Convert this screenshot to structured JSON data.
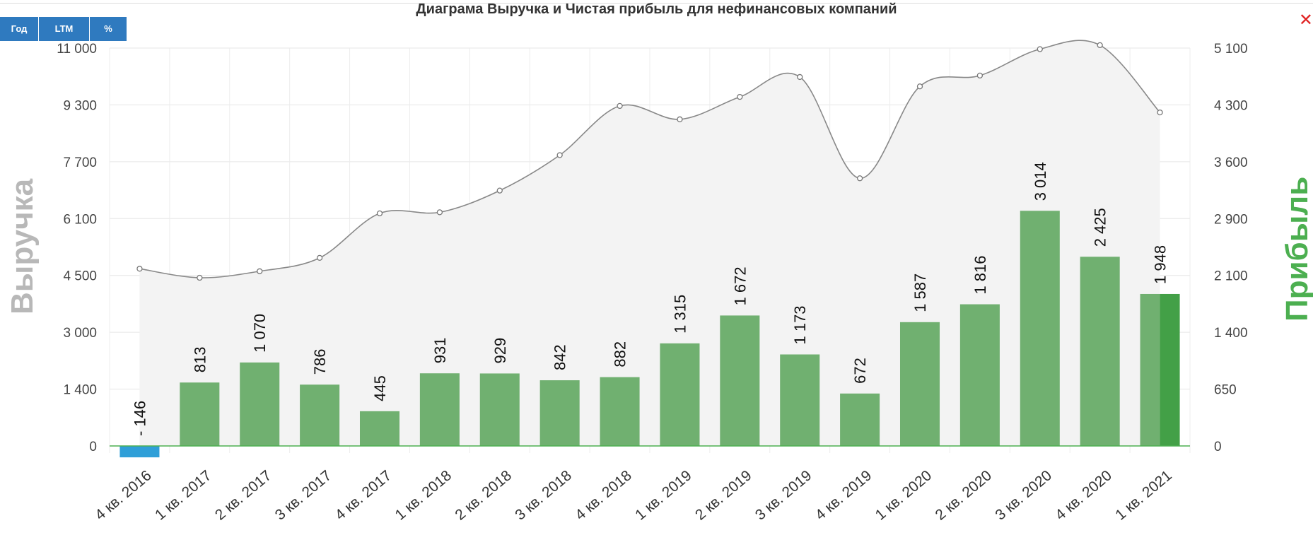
{
  "toolbar": {
    "year_label": "Год",
    "ltm_label": "LTM",
    "pct_label": "%"
  },
  "close_label": "✕",
  "chart_data": {
    "type": "bar",
    "title": "Диаграма Выручка и Чистая прибыль для нефинансовых компаний",
    "ylabel": "Выручка",
    "y2label": "Прибыль",
    "categories": [
      "4 кв. 2016",
      "1 кв. 2017",
      "2 кв. 2017",
      "3 кв. 2017",
      "4 кв. 2017",
      "1 кв. 2018",
      "2 кв. 2018",
      "3 кв. 2018",
      "4 кв. 2018",
      "1 кв. 2019",
      "2 кв. 2019",
      "3 кв. 2019",
      "4 кв. 2019",
      "1 кв. 2020",
      "2 кв. 2020",
      "3 кв. 2020",
      "4 кв. 2020",
      "1 кв. 2021"
    ],
    "y_ticks": [
      "0",
      "1 400",
      "3 000",
      "4 500",
      "6 100",
      "7 700",
      "9 300",
      "11 000"
    ],
    "y2_ticks": [
      "0",
      "650",
      "1 400",
      "2 100",
      "2 900",
      "3 600",
      "4 300",
      "5 100"
    ],
    "ylim": [
      0,
      11000
    ],
    "y2lim": [
      0,
      5100
    ],
    "grid": true,
    "series": [
      {
        "type": "area-line",
        "axis": "left",
        "color": "#888888",
        "fill": "#f3f3f3",
        "values": [
          4900,
          4650,
          4830,
          5200,
          6430,
          6460,
          7060,
          8040,
          9400,
          9030,
          9650,
          10200,
          7400,
          9940,
          10240,
          10970,
          11080,
          9220
        ]
      },
      {
        "type": "bar",
        "axis": "right",
        "color": "#70b070",
        "negative_color": "#2f9fd8",
        "last_color": "#43a047",
        "values": [
          -146,
          813,
          1070,
          786,
          445,
          931,
          929,
          842,
          882,
          1315,
          1672,
          1173,
          672,
          1587,
          1816,
          3014,
          2425,
          1948
        ],
        "labels": [
          "- 146",
          "813",
          "1 070",
          "786",
          "445",
          "931",
          "929",
          "842",
          "882",
          "1 315",
          "1 672",
          "1 173",
          "672",
          "1 587",
          "1 816",
          "3 014",
          "2 425",
          "1 948"
        ]
      }
    ]
  }
}
